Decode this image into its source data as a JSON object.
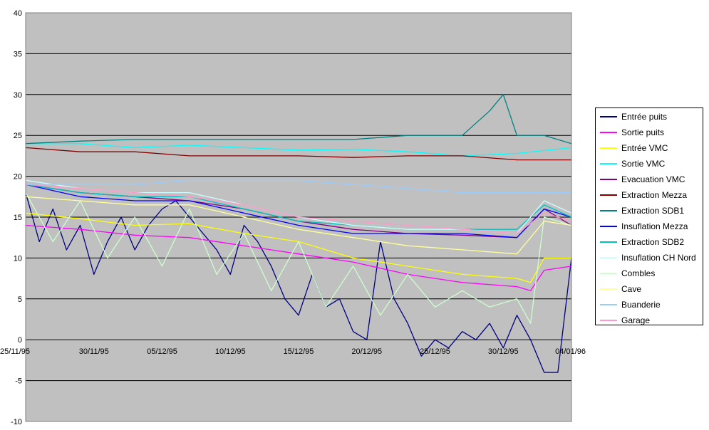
{
  "chart_data": {
    "type": "line",
    "title": "",
    "xlabel": "",
    "ylabel": "",
    "ylim": [
      -10,
      40
    ],
    "y_ticks": [
      "-10",
      "-5",
      "0",
      "5",
      "10",
      "15",
      "20",
      "25",
      "30",
      "35",
      "40"
    ],
    "x_tick_labels": [
      "25/11/95",
      "30/11/95",
      "05/12/95",
      "10/12/95",
      "15/12/95",
      "20/12/95",
      "25/12/95",
      "30/12/95",
      "04/01/96"
    ],
    "x_day_range": [
      0,
      40
    ],
    "grid": "horizontal",
    "legend_position": "right",
    "plot_background": "#c0c0c0",
    "series": [
      {
        "name": "Entrée puits",
        "color": "#000080",
        "days": [
          0,
          1,
          2,
          3,
          4,
          5,
          6,
          7,
          8,
          9,
          10,
          11,
          12,
          13,
          14,
          15,
          16,
          17,
          18,
          19,
          20,
          21,
          22,
          23,
          24,
          25,
          26,
          27,
          28,
          29,
          30,
          31,
          32,
          33,
          34,
          35,
          36,
          37,
          38,
          39,
          40
        ],
        "values": [
          18,
          12,
          16,
          11,
          14,
          8,
          12,
          15,
          11,
          14,
          16,
          17,
          15,
          13,
          11,
          8,
          14,
          12,
          9,
          5,
          3,
          8,
          4,
          5,
          1,
          0,
          12,
          5,
          2,
          -2,
          0,
          -1,
          1,
          0,
          2,
          -1,
          3,
          0,
          -4,
          -4,
          10
        ]
      },
      {
        "name": "Sortie puits",
        "color": "#ff00ff",
        "days": [
          0,
          4,
          8,
          12,
          16,
          20,
          24,
          28,
          32,
          36,
          37,
          38,
          40
        ],
        "values": [
          14,
          13.5,
          12.8,
          12.5,
          11.5,
          10.5,
          9.5,
          8,
          7,
          6.5,
          6,
          8.5,
          9
        ]
      },
      {
        "name": "Entrée VMC",
        "color": "#ffff00",
        "days": [
          0,
          4,
          8,
          12,
          16,
          20,
          24,
          28,
          32,
          36,
          37,
          38,
          40
        ],
        "values": [
          15.5,
          14.8,
          14,
          14.2,
          13,
          12,
          10,
          9,
          8,
          7.5,
          7,
          10,
          10
        ]
      },
      {
        "name": "Sortie VMC",
        "color": "#00ffff",
        "days": [
          0,
          4,
          8,
          12,
          16,
          20,
          24,
          28,
          32,
          36,
          40
        ],
        "values": [
          24,
          24,
          23.5,
          23.8,
          23.5,
          23.2,
          23.3,
          23,
          22.5,
          22.8,
          23.5
        ]
      },
      {
        "name": "Evacuation VMC",
        "color": "#800080",
        "days": [
          0,
          4,
          8,
          12,
          16,
          20,
          24,
          28,
          32,
          36,
          38,
          40
        ],
        "values": [
          19,
          18,
          17.5,
          17,
          16,
          14.5,
          13.5,
          13,
          12.8,
          12.5,
          16,
          14
        ]
      },
      {
        "name": "Extraction Mezza",
        "color": "#800000",
        "days": [
          0,
          4,
          8,
          12,
          16,
          20,
          24,
          28,
          32,
          36,
          40
        ],
        "values": [
          23.5,
          23,
          23,
          22.5,
          22.5,
          22.5,
          22.3,
          22.5,
          22.5,
          22,
          22
        ]
      },
      {
        "name": "Extraction SDB1",
        "color": "#008080",
        "days": [
          0,
          4,
          8,
          12,
          16,
          20,
          24,
          28,
          32,
          34,
          35,
          36,
          38,
          40
        ],
        "values": [
          24,
          24.3,
          24.5,
          24.5,
          24.5,
          24.5,
          24.5,
          25,
          25,
          28,
          30,
          25,
          25,
          24
        ]
      },
      {
        "name": "Insuflation Mezza",
        "color": "#0000ff",
        "days": [
          0,
          4,
          8,
          12,
          16,
          20,
          24,
          28,
          32,
          36,
          38,
          40
        ],
        "values": [
          19,
          17.5,
          17,
          17,
          15.5,
          14,
          13,
          13,
          13,
          12.5,
          16,
          15
        ]
      },
      {
        "name": "Extraction SDB2",
        "color": "#00c0c0",
        "days": [
          0,
          4,
          8,
          12,
          16,
          20,
          24,
          28,
          32,
          36,
          38,
          40
        ],
        "values": [
          19,
          18,
          17.5,
          17.5,
          16,
          14.5,
          14,
          13.5,
          13.5,
          13.5,
          16.5,
          15
        ]
      },
      {
        "name": "Insuflation CH Nord",
        "color": "#ccffff",
        "days": [
          0,
          4,
          8,
          12,
          16,
          20,
          24,
          28,
          32,
          36,
          38,
          40
        ],
        "values": [
          19.5,
          18.5,
          18,
          18,
          16.5,
          15,
          14,
          13.5,
          13.5,
          13,
          17,
          15.5
        ]
      },
      {
        "name": "Combles",
        "color": "#ccffcc",
        "days": [
          0,
          2,
          4,
          6,
          8,
          10,
          12,
          14,
          16,
          18,
          20,
          22,
          24,
          26,
          28,
          30,
          32,
          34,
          36,
          37,
          38,
          40
        ],
        "values": [
          18,
          12,
          17,
          10,
          15,
          9,
          16,
          8,
          13,
          6,
          12,
          4,
          9,
          3,
          8,
          4,
          6,
          4,
          5,
          2,
          15,
          14
        ]
      },
      {
        "name": "Cave",
        "color": "#ffff99",
        "days": [
          0,
          4,
          8,
          12,
          16,
          20,
          24,
          28,
          32,
          36,
          38,
          40
        ],
        "values": [
          17.5,
          17,
          16.5,
          16.5,
          15,
          13.5,
          12.5,
          11.5,
          11,
          10.5,
          14.5,
          14
        ]
      },
      {
        "name": "Buanderie",
        "color": "#99ccff",
        "days": [
          0,
          4,
          8,
          12,
          16,
          20,
          24,
          28,
          32,
          36,
          40
        ],
        "values": [
          19,
          19,
          19,
          19.5,
          19.5,
          19.5,
          19,
          18.5,
          18,
          18,
          18
        ]
      },
      {
        "name": "Garage",
        "color": "#ff99cc",
        "days": [
          0,
          4,
          8,
          12,
          16,
          20,
          24,
          28,
          32,
          36,
          38,
          40
        ],
        "values": [
          19,
          18.5,
          18,
          17.5,
          16.5,
          15,
          14.5,
          14,
          13.5,
          13,
          15.5,
          14.5
        ]
      }
    ]
  }
}
